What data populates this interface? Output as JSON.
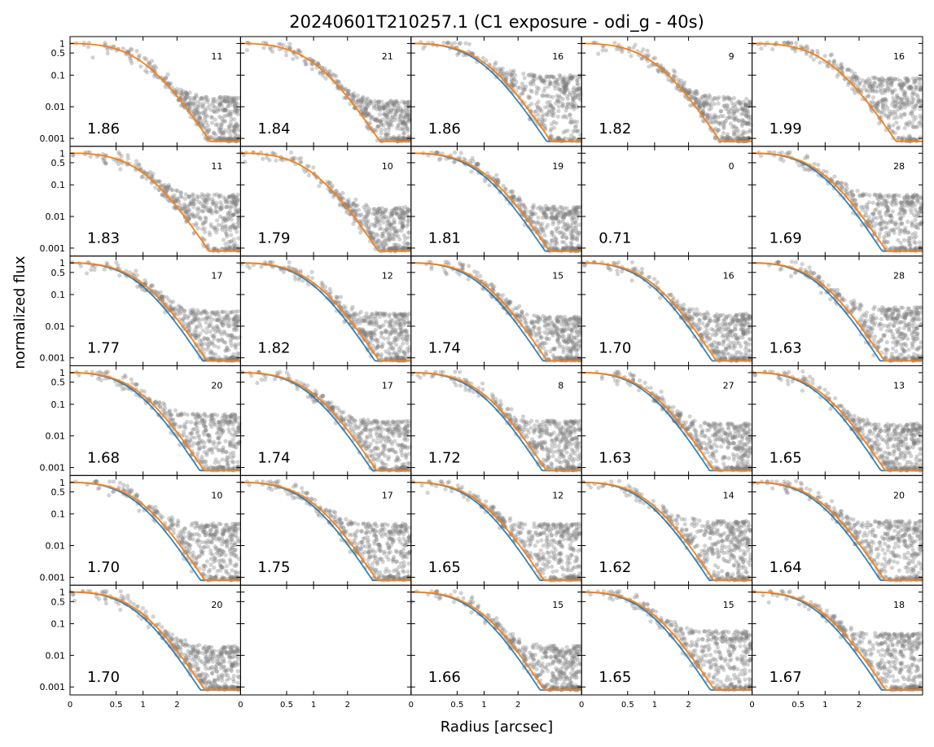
{
  "figure": {
    "title": "20240601T210257.1 (C1 exposure - odi_g - 40s)",
    "xlabel": "Radius [arcsec]",
    "ylabel": "normalized flux"
  },
  "colors": {
    "points": "#7f7f7f",
    "fit_orange": "#ff7f0e",
    "fit_blue": "#1f77b4"
  },
  "chart_data": {
    "type": "scatter",
    "layout": {
      "rows": 6,
      "cols": 5
    },
    "y_scale": "log",
    "ylim": [
      0.0008,
      1.3
    ],
    "y_ticks": [
      1,
      0.5,
      0.1,
      0.01,
      0.001
    ],
    "y_tick_labels": [
      "1",
      "0.5",
      "0.1",
      "0.01",
      "0.001"
    ],
    "x_scale": "nonlinear",
    "xlim": [
      0,
      6
    ],
    "x_ticks": [
      0,
      0.5,
      1,
      2
    ],
    "x_tick_labels": [
      "0",
      "0.5",
      "1",
      "2"
    ],
    "series": [
      {
        "name": "",
        "kind": "scatter",
        "color": "#7f7f7f"
      },
      {
        "name": "",
        "kind": "line",
        "color": "#ff7f0e"
      },
      {
        "name": "",
        "kind": "line",
        "color": "#1f77b4"
      }
    ],
    "panels": [
      {
        "label": "1.86",
        "count": "11",
        "blue": false,
        "noise": 0.02
      },
      {
        "label": "1.84",
        "count": "21",
        "blue": false,
        "noise": 0.015
      },
      {
        "label": "1.86",
        "count": "16",
        "blue": true,
        "noise": 0.1
      },
      {
        "label": "1.82",
        "count": "9",
        "blue": false,
        "noise": 0.02
      },
      {
        "label": "1.99",
        "count": "16",
        "blue": false,
        "noise": 0.08
      },
      {
        "label": "1.83",
        "count": "11",
        "blue": false,
        "noise": 0.05
      },
      {
        "label": "1.79",
        "count": "10",
        "blue": false,
        "noise": 0.02
      },
      {
        "label": "1.81",
        "count": "19",
        "blue": true,
        "noise": 0.02
      },
      {
        "label": "0.71",
        "count": "0",
        "blue": false,
        "noise": 0,
        "empty_data": true
      },
      {
        "label": "1.69",
        "count": "28",
        "blue": true,
        "noise": 0.05
      },
      {
        "label": "1.77",
        "count": "17",
        "blue": true,
        "noise": 0.03
      },
      {
        "label": "1.82",
        "count": "12",
        "blue": true,
        "noise": 0.025
      },
      {
        "label": "1.74",
        "count": "15",
        "blue": true,
        "noise": 0.02
      },
      {
        "label": "1.70",
        "count": "16",
        "blue": true,
        "noise": 0.025
      },
      {
        "label": "1.63",
        "count": "28",
        "blue": true,
        "noise": 0.04
      },
      {
        "label": "1.68",
        "count": "20",
        "blue": true,
        "noise": 0.05
      },
      {
        "label": "1.74",
        "count": "17",
        "blue": true,
        "noise": 0.03
      },
      {
        "label": "1.72",
        "count": "8",
        "blue": true,
        "noise": 0.03
      },
      {
        "label": "1.63",
        "count": "27",
        "blue": true,
        "noise": 0.025
      },
      {
        "label": "1.65",
        "count": "13",
        "blue": true,
        "noise": 0.025
      },
      {
        "label": "1.70",
        "count": "10",
        "blue": true,
        "noise": 0.05
      },
      {
        "label": "1.75",
        "count": "17",
        "blue": true,
        "noise": 0.05
      },
      {
        "label": "1.65",
        "count": "12",
        "blue": true,
        "noise": 0.05
      },
      {
        "label": "1.62",
        "count": "14",
        "blue": true,
        "noise": 0.06
      },
      {
        "label": "1.64",
        "count": "20",
        "blue": true,
        "noise": 0.06
      },
      {
        "label": "1.70",
        "count": "20",
        "blue": true,
        "noise": 0.02
      },
      {
        "label": "",
        "count": "",
        "blue": false,
        "noise": 0,
        "empty": true
      },
      {
        "label": "1.66",
        "count": "15",
        "blue": true,
        "noise": 0.02
      },
      {
        "label": "1.65",
        "count": "15",
        "blue": true,
        "noise": 0.06
      },
      {
        "label": "1.67",
        "count": "18",
        "blue": true,
        "noise": 0.05
      }
    ]
  }
}
